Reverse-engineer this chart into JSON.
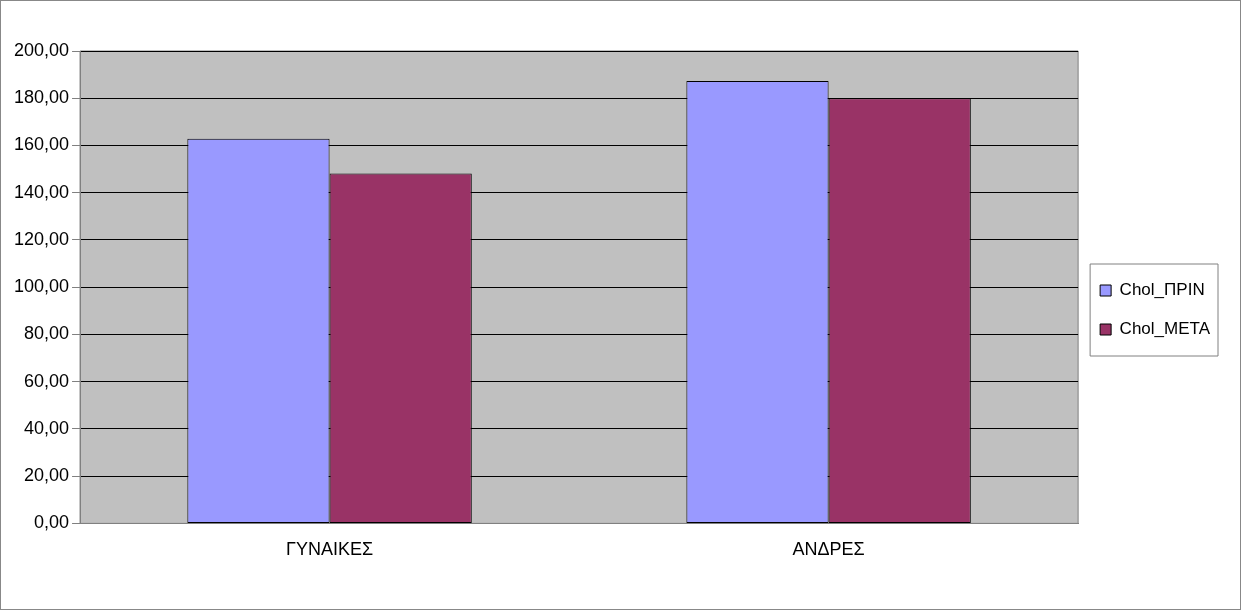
{
  "chart_data": {
    "type": "bar",
    "categories": [
      "ΓΥΝΑΙΚΕΣ",
      "ΑΝΔΡΕΣ"
    ],
    "series": [
      {
        "name": "Chol_ΠΡΙΝ",
        "color": "#9999ff",
        "values": [
          162.9,
          187.3
        ]
      },
      {
        "name": "Chol_ΜΕΤΑ",
        "color": "#993366",
        "values": [
          148.1,
          180.0
        ]
      }
    ],
    "ylim": [
      0,
      200
    ],
    "yticks": [
      {
        "value": 0,
        "label": "0,00"
      },
      {
        "value": 20,
        "label": "20,00"
      },
      {
        "value": 40,
        "label": "40,00"
      },
      {
        "value": 60,
        "label": "60,00"
      },
      {
        "value": 80,
        "label": "80,00"
      },
      {
        "value": 100,
        "label": "100,00"
      },
      {
        "value": 120,
        "label": "120,00"
      },
      {
        "value": 140,
        "label": "140,00"
      },
      {
        "value": 160,
        "label": "160,00"
      },
      {
        "value": 180,
        "label": "180,00"
      },
      {
        "value": 200,
        "label": "200,00"
      }
    ],
    "grid": "y",
    "legend": "right"
  }
}
